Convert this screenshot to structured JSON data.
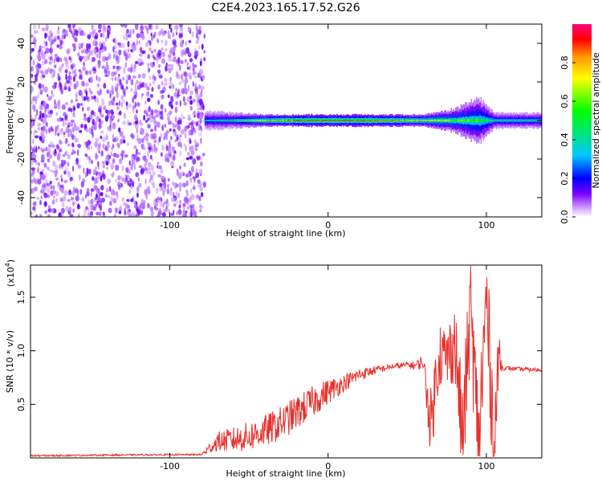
{
  "figure_title": "C2E4.2023.165.17.52.G26",
  "colors": {
    "snr_line": "#e8302c",
    "axis": "#000000",
    "colormap": [
      "#ffffff",
      "#cc99ff",
      "#7a00ff",
      "#0000ff",
      "#00c8ff",
      "#00e08a",
      "#00ff00",
      "#ffff00",
      "#ff9900",
      "#ff0000",
      "#ff0080"
    ]
  },
  "chart_data": [
    {
      "type": "heatmap",
      "title": "",
      "xlabel": "Height of straight line (km)",
      "ylabel": "Frequency (Hz)",
      "xlim": [
        -188,
        135
      ],
      "ylim": [
        -50,
        50
      ],
      "xticks": [
        -100,
        0,
        100
      ],
      "xtick_labels": [
        "-100",
        "0",
        "100"
      ],
      "yticks": [
        -40,
        -20,
        0,
        20,
        40
      ],
      "ytick_labels": [
        "-40",
        "-20",
        "0",
        "20",
        "40"
      ],
      "colorbar": {
        "label": "Normalized spectral amplitude",
        "range": [
          0,
          1
        ],
        "ticks": [
          0.0,
          0.2,
          0.4,
          0.6,
          0.8
        ],
        "tick_labels": [
          "0.0",
          "0.2",
          "0.4",
          "0.6",
          "0.8"
        ]
      },
      "noise_region_x": [
        -188,
        -78
      ],
      "noise_amplitude": 0.15,
      "signal_band": [
        {
          "x": -78,
          "half_width_hz": 5,
          "peak": 0.35
        },
        {
          "x": -60,
          "half_width_hz": 4,
          "peak": 0.45
        },
        {
          "x": -40,
          "half_width_hz": 3,
          "peak": 0.75
        },
        {
          "x": -20,
          "half_width_hz": 3,
          "peak": 0.9
        },
        {
          "x": 0,
          "half_width_hz": 3,
          "peak": 0.95
        },
        {
          "x": 20,
          "half_width_hz": 3,
          "peak": 0.92
        },
        {
          "x": 40,
          "half_width_hz": 3,
          "peak": 0.85
        },
        {
          "x": 60,
          "half_width_hz": 3,
          "peak": 0.75
        },
        {
          "x": 80,
          "half_width_hz": 6,
          "peak": 0.6
        },
        {
          "x": 95,
          "half_width_hz": 12,
          "peak": 0.55
        },
        {
          "x": 105,
          "half_width_hz": 4,
          "peak": 0.45
        },
        {
          "x": 135,
          "half_width_hz": 4,
          "peak": 0.45
        }
      ]
    },
    {
      "type": "line",
      "title": "",
      "xlabel": "Height of straight line (km)",
      "ylabel": "SNR (10 * v/v)",
      "y_scale_label": "(x10",
      "y_scale_exponent": "4",
      "y_scale_close": ")",
      "xlim": [
        -188,
        135
      ],
      "ylim": [
        0,
        18000
      ],
      "xticks": [
        -100,
        0,
        100
      ],
      "xtick_labels": [
        "-100",
        "0",
        "100"
      ],
      "yticks": [
        5000,
        10000,
        15000
      ],
      "ytick_labels": [
        "0.5",
        "1.0",
        "1.5"
      ],
      "series": [
        {
          "name": "SNR",
          "x": [
            -188,
            -150,
            -100,
            -80,
            -70,
            -60,
            -50,
            -40,
            -30,
            -20,
            -10,
            0,
            10,
            20,
            30,
            40,
            50,
            55,
            60,
            65,
            70,
            75,
            80,
            85,
            90,
            95,
            100,
            105,
            108,
            110,
            120,
            135
          ],
          "y": [
            200,
            250,
            300,
            300,
            1500,
            1700,
            2000,
            2500,
            3200,
            4200,
            5200,
            6200,
            7000,
            7800,
            8200,
            8500,
            8700,
            8600,
            9000,
            3000,
            10000,
            9200,
            11000,
            1800,
            14000,
            800,
            15000,
            900,
            10000,
            8400,
            8300,
            8200
          ],
          "noise_amplitude": [
            80,
            80,
            80,
            80,
            900,
            1200,
            1400,
            1500,
            1600,
            1600,
            1500,
            1200,
            800,
            600,
            400,
            250,
            300,
            400,
            700,
            3500,
            3500,
            3000,
            4000,
            5000,
            5000,
            6000,
            5500,
            5000,
            2500,
            200,
            200,
            200
          ]
        }
      ]
    }
  ]
}
